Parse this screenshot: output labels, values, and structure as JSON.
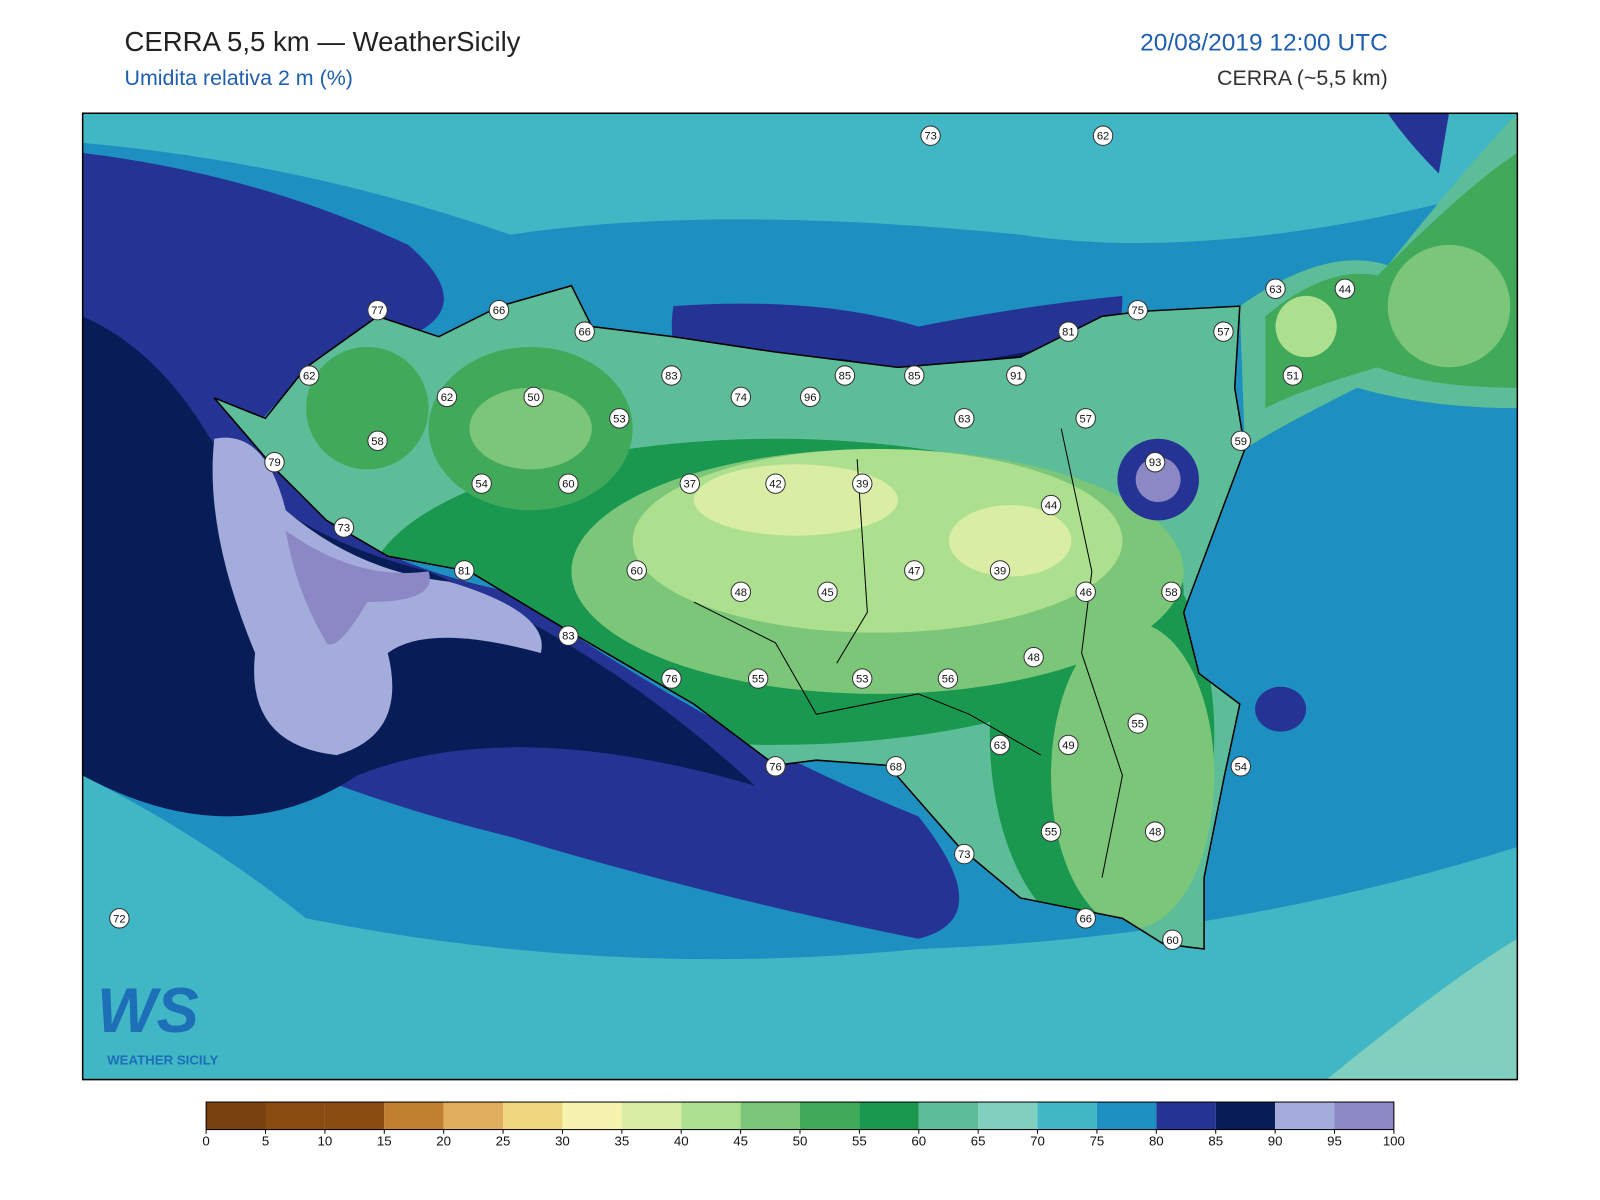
{
  "header": {
    "title": "CERRA 5,5 km — WeatherSicily",
    "subtitle": "Umidita relativa 2 m (%)",
    "datetime": "20/08/2019 12:00 UTC",
    "model": "CERRA (~5,5 km)"
  },
  "logo": {
    "mark": "WS",
    "text": "WEATHER SICILY"
  },
  "stations": [
    73,
    62,
    77,
    66,
    66,
    63,
    44,
    75,
    81,
    57,
    62,
    83,
    74,
    96,
    85,
    85,
    91,
    51,
    62,
    50,
    53,
    63,
    57,
    58,
    59,
    79,
    93,
    54,
    60,
    37,
    42,
    39,
    44,
    73,
    81,
    60,
    47,
    39,
    48,
    45,
    46,
    58,
    83,
    48,
    76,
    55,
    53,
    56,
    55,
    63,
    49,
    76,
    68,
    54,
    73,
    55,
    48,
    72,
    66,
    60
  ],
  "colorbar": {
    "bins": [
      0,
      5,
      10,
      15,
      20,
      25,
      30,
      35,
      40,
      45,
      50,
      55,
      60,
      65,
      70,
      75,
      80,
      85,
      90,
      95,
      100
    ],
    "colors": [
      "#774210",
      "#8b4c12",
      "#8b4c12",
      "#bf7f2e",
      "#e0af5e",
      "#f0d67e",
      "#f5f3ad",
      "#d9eda5",
      "#ade08e",
      "#7cc679",
      "#41a95a",
      "#1a9850",
      "#5dbd98",
      "#80cfbf",
      "#41b6c4",
      "#1d8fc0",
      "#253494",
      "#081d58",
      "#a3acdb",
      "#8c88c6"
    ]
  }
}
